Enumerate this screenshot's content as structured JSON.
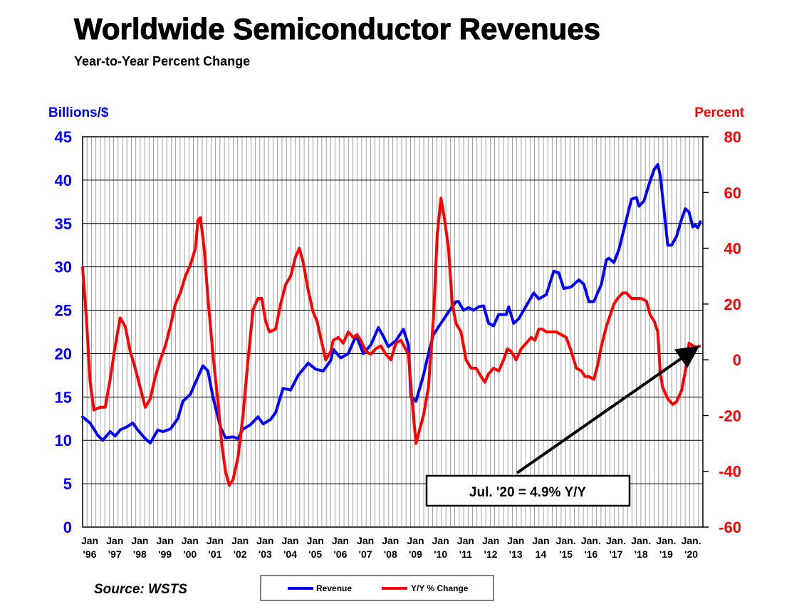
{
  "chart_data": {
    "type": "line",
    "title": "Worldwide Semiconductor Revenues",
    "subtitle": "Year-to-Year Percent Change",
    "ylabel_left": "Billions/$",
    "ylabel_right": "Percent",
    "ylim_left": [
      0,
      45
    ],
    "ylim_right": [
      -60,
      80
    ],
    "left_ticks": [
      "0",
      "5",
      "10",
      "15",
      "20",
      "25",
      "30",
      "35",
      "40",
      "45"
    ],
    "right_ticks": [
      "-60",
      "-40",
      "-20",
      "0",
      "20",
      "40",
      "60",
      "80"
    ],
    "x_ticks": [
      {
        "top": "Jan",
        "bottom": "'96"
      },
      {
        "top": "Jan",
        "bottom": "'97"
      },
      {
        "top": "Jan",
        "bottom": "'98"
      },
      {
        "top": "Jan",
        "bottom": "'99"
      },
      {
        "top": "Jan",
        "bottom": "'00"
      },
      {
        "top": "Jan",
        "bottom": "'01"
      },
      {
        "top": "Jan",
        "bottom": "'02"
      },
      {
        "top": "Jan",
        "bottom": "'03"
      },
      {
        "top": "Jan",
        "bottom": "'04"
      },
      {
        "top": "Jan",
        "bottom": "'05"
      },
      {
        "top": "Jan",
        "bottom": "'06"
      },
      {
        "top": "Jan",
        "bottom": "'07"
      },
      {
        "top": "Jan",
        "bottom": "'08"
      },
      {
        "top": "Jan",
        "bottom": "'09"
      },
      {
        "top": "Jan",
        "bottom": "'10"
      },
      {
        "top": "Jan",
        "bottom": "'11"
      },
      {
        "top": "Jan",
        "bottom": "'12"
      },
      {
        "top": "Jan",
        "bottom": "'13"
      },
      {
        "top": "Jan",
        "bottom": "14"
      },
      {
        "top": "Jan.",
        "bottom": "'15"
      },
      {
        "top": "Jan.",
        "bottom": "'16"
      },
      {
        "top": "Jan.",
        "bottom": "'17"
      },
      {
        "top": "Jan.",
        "bottom": "'18"
      },
      {
        "top": "Jan.",
        "bottom": "'19"
      },
      {
        "top": "Jan.",
        "bottom": "'20"
      }
    ],
    "grid": true,
    "series": [
      {
        "name": "Revenue",
        "axis": "left",
        "color": "#0000ff",
        "points": [
          [
            1996.0,
            12.7
          ],
          [
            1996.3,
            12.0
          ],
          [
            1996.6,
            10.6
          ],
          [
            1996.8,
            10.0
          ],
          [
            1997.1,
            11.0
          ],
          [
            1997.3,
            10.5
          ],
          [
            1997.5,
            11.2
          ],
          [
            1997.8,
            11.6
          ],
          [
            1998.0,
            12.0
          ],
          [
            1998.2,
            11.2
          ],
          [
            1998.5,
            10.2
          ],
          [
            1998.7,
            9.7
          ],
          [
            1999.0,
            11.2
          ],
          [
            1999.2,
            11.0
          ],
          [
            1999.5,
            11.3
          ],
          [
            1999.8,
            12.5
          ],
          [
            2000.0,
            14.5
          ],
          [
            2000.3,
            15.3
          ],
          [
            2000.6,
            17.3
          ],
          [
            2000.8,
            18.6
          ],
          [
            2001.0,
            18.0
          ],
          [
            2001.2,
            15.0
          ],
          [
            2001.5,
            11.5
          ],
          [
            2001.7,
            10.3
          ],
          [
            2002.0,
            10.4
          ],
          [
            2002.2,
            10.2
          ],
          [
            2002.4,
            11.3
          ],
          [
            2002.7,
            11.8
          ],
          [
            2003.0,
            12.7
          ],
          [
            2003.2,
            11.9
          ],
          [
            2003.5,
            12.4
          ],
          [
            2003.7,
            13.2
          ],
          [
            2004.0,
            16.0
          ],
          [
            2004.3,
            15.8
          ],
          [
            2004.6,
            17.5
          ],
          [
            2004.8,
            18.2
          ],
          [
            2005.0,
            18.9
          ],
          [
            2005.3,
            18.2
          ],
          [
            2005.6,
            18.0
          ],
          [
            2005.9,
            19.2
          ],
          [
            2006.0,
            20.5
          ],
          [
            2006.3,
            19.5
          ],
          [
            2006.6,
            20.0
          ],
          [
            2006.9,
            22.0
          ],
          [
            2007.0,
            21.5
          ],
          [
            2007.2,
            20.0
          ],
          [
            2007.5,
            21.0
          ],
          [
            2007.8,
            23.0
          ],
          [
            2008.0,
            22.0
          ],
          [
            2008.2,
            20.8
          ],
          [
            2008.5,
            21.5
          ],
          [
            2008.8,
            22.8
          ],
          [
            2009.0,
            21.0
          ],
          [
            2009.1,
            15.0
          ],
          [
            2009.3,
            14.5
          ],
          [
            2009.6,
            17.5
          ],
          [
            2009.8,
            20.0
          ],
          [
            2010.0,
            22.2
          ],
          [
            2010.3,
            23.5
          ],
          [
            2010.6,
            24.8
          ],
          [
            2010.9,
            26.0
          ],
          [
            2011.0,
            26.0
          ],
          [
            2011.2,
            25.0
          ],
          [
            2011.4,
            25.3
          ],
          [
            2011.6,
            25.0
          ],
          [
            2011.8,
            25.4
          ],
          [
            2012.0,
            25.5
          ],
          [
            2012.2,
            23.5
          ],
          [
            2012.4,
            23.2
          ],
          [
            2012.6,
            24.5
          ],
          [
            2012.9,
            24.5
          ],
          [
            2013.0,
            25.4
          ],
          [
            2013.2,
            23.5
          ],
          [
            2013.4,
            24.0
          ],
          [
            2013.7,
            25.5
          ],
          [
            2014.0,
            27.0
          ],
          [
            2014.2,
            26.3
          ],
          [
            2014.5,
            26.8
          ],
          [
            2014.8,
            29.5
          ],
          [
            2015.0,
            29.3
          ],
          [
            2015.2,
            27.5
          ],
          [
            2015.5,
            27.7
          ],
          [
            2015.8,
            28.5
          ],
          [
            2016.0,
            28.0
          ],
          [
            2016.2,
            26.0
          ],
          [
            2016.4,
            26.0
          ],
          [
            2016.7,
            28.0
          ],
          [
            2016.9,
            30.8
          ],
          [
            2017.0,
            31.0
          ],
          [
            2017.2,
            30.5
          ],
          [
            2017.4,
            32.0
          ],
          [
            2017.7,
            35.5
          ],
          [
            2017.9,
            37.8
          ],
          [
            2018.1,
            38.0
          ],
          [
            2018.2,
            37.0
          ],
          [
            2018.4,
            37.6
          ],
          [
            2018.6,
            39.5
          ],
          [
            2018.8,
            41.2
          ],
          [
            2018.95,
            41.8
          ],
          [
            2019.05,
            40.5
          ],
          [
            2019.2,
            36.5
          ],
          [
            2019.35,
            32.5
          ],
          [
            2019.5,
            32.5
          ],
          [
            2019.7,
            33.5
          ],
          [
            2019.9,
            35.5
          ],
          [
            2020.05,
            36.7
          ],
          [
            2020.2,
            36.3
          ],
          [
            2020.35,
            34.6
          ],
          [
            2020.45,
            34.8
          ],
          [
            2020.55,
            34.5
          ],
          [
            2020.65,
            35.2
          ]
        ]
      },
      {
        "name": "Y/Y % Change",
        "axis": "right",
        "color": "#ff0000",
        "points": [
          [
            1996.0,
            33
          ],
          [
            1996.15,
            15
          ],
          [
            1996.3,
            -8
          ],
          [
            1996.45,
            -18
          ],
          [
            1996.7,
            -17
          ],
          [
            1996.9,
            -17
          ],
          [
            1997.1,
            -7
          ],
          [
            1997.3,
            5
          ],
          [
            1997.5,
            15
          ],
          [
            1997.7,
            12
          ],
          [
            1997.9,
            3
          ],
          [
            1998.1,
            -3
          ],
          [
            1998.3,
            -10
          ],
          [
            1998.5,
            -17
          ],
          [
            1998.7,
            -14
          ],
          [
            1998.9,
            -6
          ],
          [
            1999.1,
            0
          ],
          [
            1999.3,
            5
          ],
          [
            1999.5,
            12
          ],
          [
            1999.7,
            20
          ],
          [
            1999.9,
            24
          ],
          [
            2000.1,
            30
          ],
          [
            2000.3,
            34
          ],
          [
            2000.5,
            40
          ],
          [
            2000.6,
            50
          ],
          [
            2000.7,
            51
          ],
          [
            2000.85,
            40
          ],
          [
            2001.0,
            22
          ],
          [
            2001.2,
            2
          ],
          [
            2001.4,
            -15
          ],
          [
            2001.55,
            -30
          ],
          [
            2001.7,
            -40
          ],
          [
            2001.85,
            -45
          ],
          [
            2002.0,
            -43
          ],
          [
            2002.2,
            -35
          ],
          [
            2002.4,
            -20
          ],
          [
            2002.6,
            0
          ],
          [
            2002.8,
            18
          ],
          [
            2003.0,
            22
          ],
          [
            2003.15,
            22
          ],
          [
            2003.3,
            14
          ],
          [
            2003.45,
            10
          ],
          [
            2003.7,
            11
          ],
          [
            2003.9,
            20
          ],
          [
            2004.1,
            27
          ],
          [
            2004.3,
            30
          ],
          [
            2004.5,
            37
          ],
          [
            2004.65,
            40
          ],
          [
            2004.8,
            35
          ],
          [
            2005.0,
            25
          ],
          [
            2005.2,
            17
          ],
          [
            2005.35,
            14
          ],
          [
            2005.5,
            8
          ],
          [
            2005.7,
            0
          ],
          [
            2005.9,
            3
          ],
          [
            2006.0,
            7
          ],
          [
            2006.2,
            8
          ],
          [
            2006.4,
            6
          ],
          [
            2006.6,
            10
          ],
          [
            2006.8,
            8
          ],
          [
            2006.95,
            9
          ],
          [
            2007.1,
            7
          ],
          [
            2007.3,
            3
          ],
          [
            2007.5,
            2
          ],
          [
            2007.7,
            4
          ],
          [
            2007.9,
            5
          ],
          [
            2008.1,
            2
          ],
          [
            2008.3,
            0
          ],
          [
            2008.5,
            6
          ],
          [
            2008.7,
            7
          ],
          [
            2009.0,
            2
          ],
          [
            2009.15,
            -15
          ],
          [
            2009.3,
            -30
          ],
          [
            2009.45,
            -25
          ],
          [
            2009.6,
            -20
          ],
          [
            2009.8,
            -10
          ],
          [
            2010.0,
            15
          ],
          [
            2010.15,
            45
          ],
          [
            2010.3,
            58
          ],
          [
            2010.45,
            50
          ],
          [
            2010.6,
            40
          ],
          [
            2010.75,
            20
          ],
          [
            2010.9,
            13
          ],
          [
            2011.1,
            10
          ],
          [
            2011.3,
            0
          ],
          [
            2011.5,
            -3
          ],
          [
            2011.7,
            -3
          ],
          [
            2011.9,
            -6
          ],
          [
            2012.05,
            -8
          ],
          [
            2012.2,
            -5
          ],
          [
            2012.4,
            -3
          ],
          [
            2012.6,
            -4
          ],
          [
            2012.8,
            0
          ],
          [
            2012.95,
            4
          ],
          [
            2013.1,
            3
          ],
          [
            2013.3,
            0
          ],
          [
            2013.5,
            4
          ],
          [
            2013.7,
            6
          ],
          [
            2013.9,
            8
          ],
          [
            2014.05,
            7
          ],
          [
            2014.2,
            11
          ],
          [
            2014.35,
            11
          ],
          [
            2014.5,
            10
          ],
          [
            2014.7,
            10
          ],
          [
            2014.9,
            10
          ],
          [
            2015.1,
            9
          ],
          [
            2015.3,
            8
          ],
          [
            2015.5,
            3
          ],
          [
            2015.7,
            -3
          ],
          [
            2015.9,
            -4
          ],
          [
            2016.05,
            -6
          ],
          [
            2016.2,
            -6
          ],
          [
            2016.4,
            -7
          ],
          [
            2016.55,
            -2
          ],
          [
            2016.7,
            5
          ],
          [
            2016.9,
            12
          ],
          [
            2017.05,
            16
          ],
          [
            2017.2,
            20
          ],
          [
            2017.35,
            22
          ],
          [
            2017.55,
            24
          ],
          [
            2017.7,
            24
          ],
          [
            2017.9,
            22
          ],
          [
            2018.1,
            22
          ],
          [
            2018.3,
            22
          ],
          [
            2018.5,
            21
          ],
          [
            2018.65,
            16
          ],
          [
            2018.8,
            14
          ],
          [
            2018.95,
            10
          ],
          [
            2019.05,
            -5
          ],
          [
            2019.15,
            -10
          ],
          [
            2019.35,
            -14
          ],
          [
            2019.55,
            -16
          ],
          [
            2019.7,
            -15
          ],
          [
            2019.9,
            -11
          ],
          [
            2020.05,
            -4
          ],
          [
            2020.2,
            6
          ],
          [
            2020.35,
            5
          ],
          [
            2020.5,
            4.5
          ],
          [
            2020.62,
            4.9
          ]
        ]
      }
    ],
    "annotation": {
      "text": "Jul. '20 = 4.9% Y/Y",
      "arrow_target": [
        2020.6,
        4.9
      ]
    },
    "legend": {
      "position": "bottom-center",
      "items": [
        {
          "label": "Revenue",
          "color": "#0000ff"
        },
        {
          "label": "Y/Y % Change",
          "color": "#ff0000"
        }
      ]
    },
    "source": "Source: WSTS",
    "colors": {
      "left_axis": "#0000ff",
      "right_axis": "#ff0000",
      "grid": "#8c8c8c"
    }
  }
}
